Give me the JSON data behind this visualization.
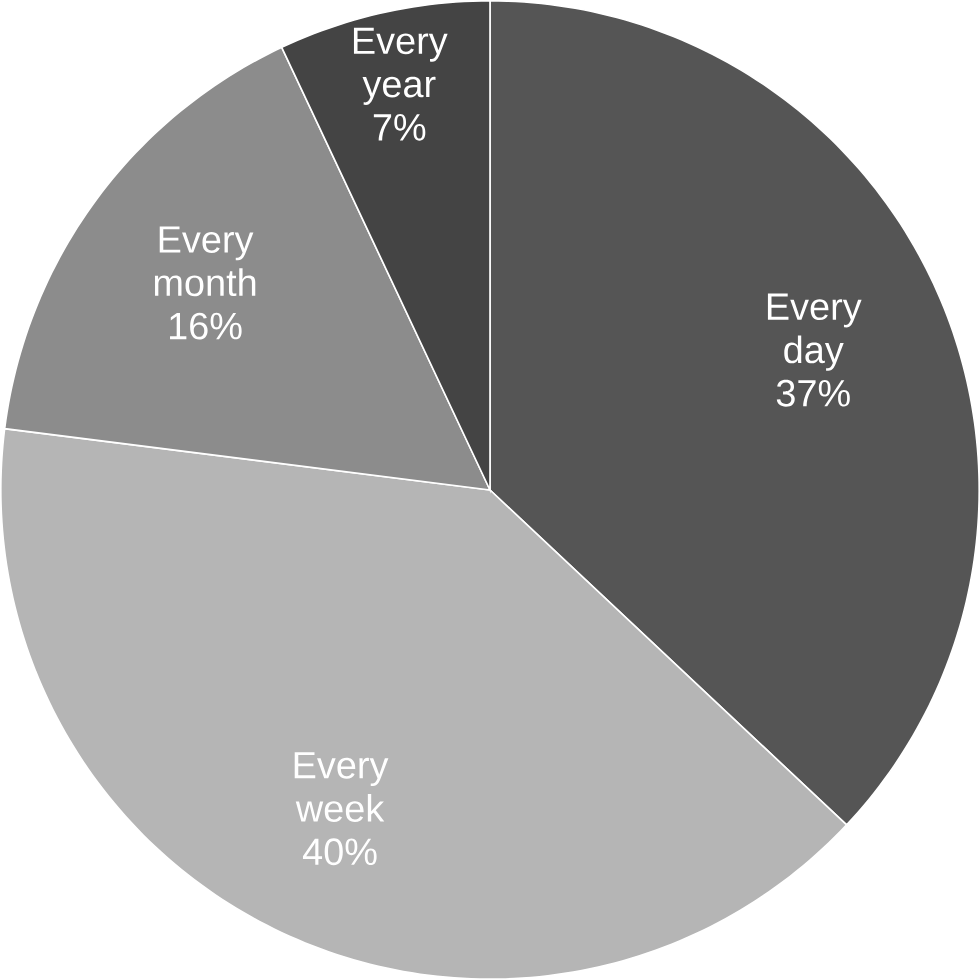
{
  "chart_data": {
    "type": "pie",
    "categories": [
      "Every day",
      "Every week",
      "Every month",
      "Every year"
    ],
    "values": [
      37,
      40,
      16,
      7
    ],
    "value_labels": [
      "37%",
      "40%",
      "16%",
      "7%"
    ],
    "colors": [
      "#555555",
      "#b5b5b5",
      "#8c8c8c",
      "#444444"
    ]
  }
}
